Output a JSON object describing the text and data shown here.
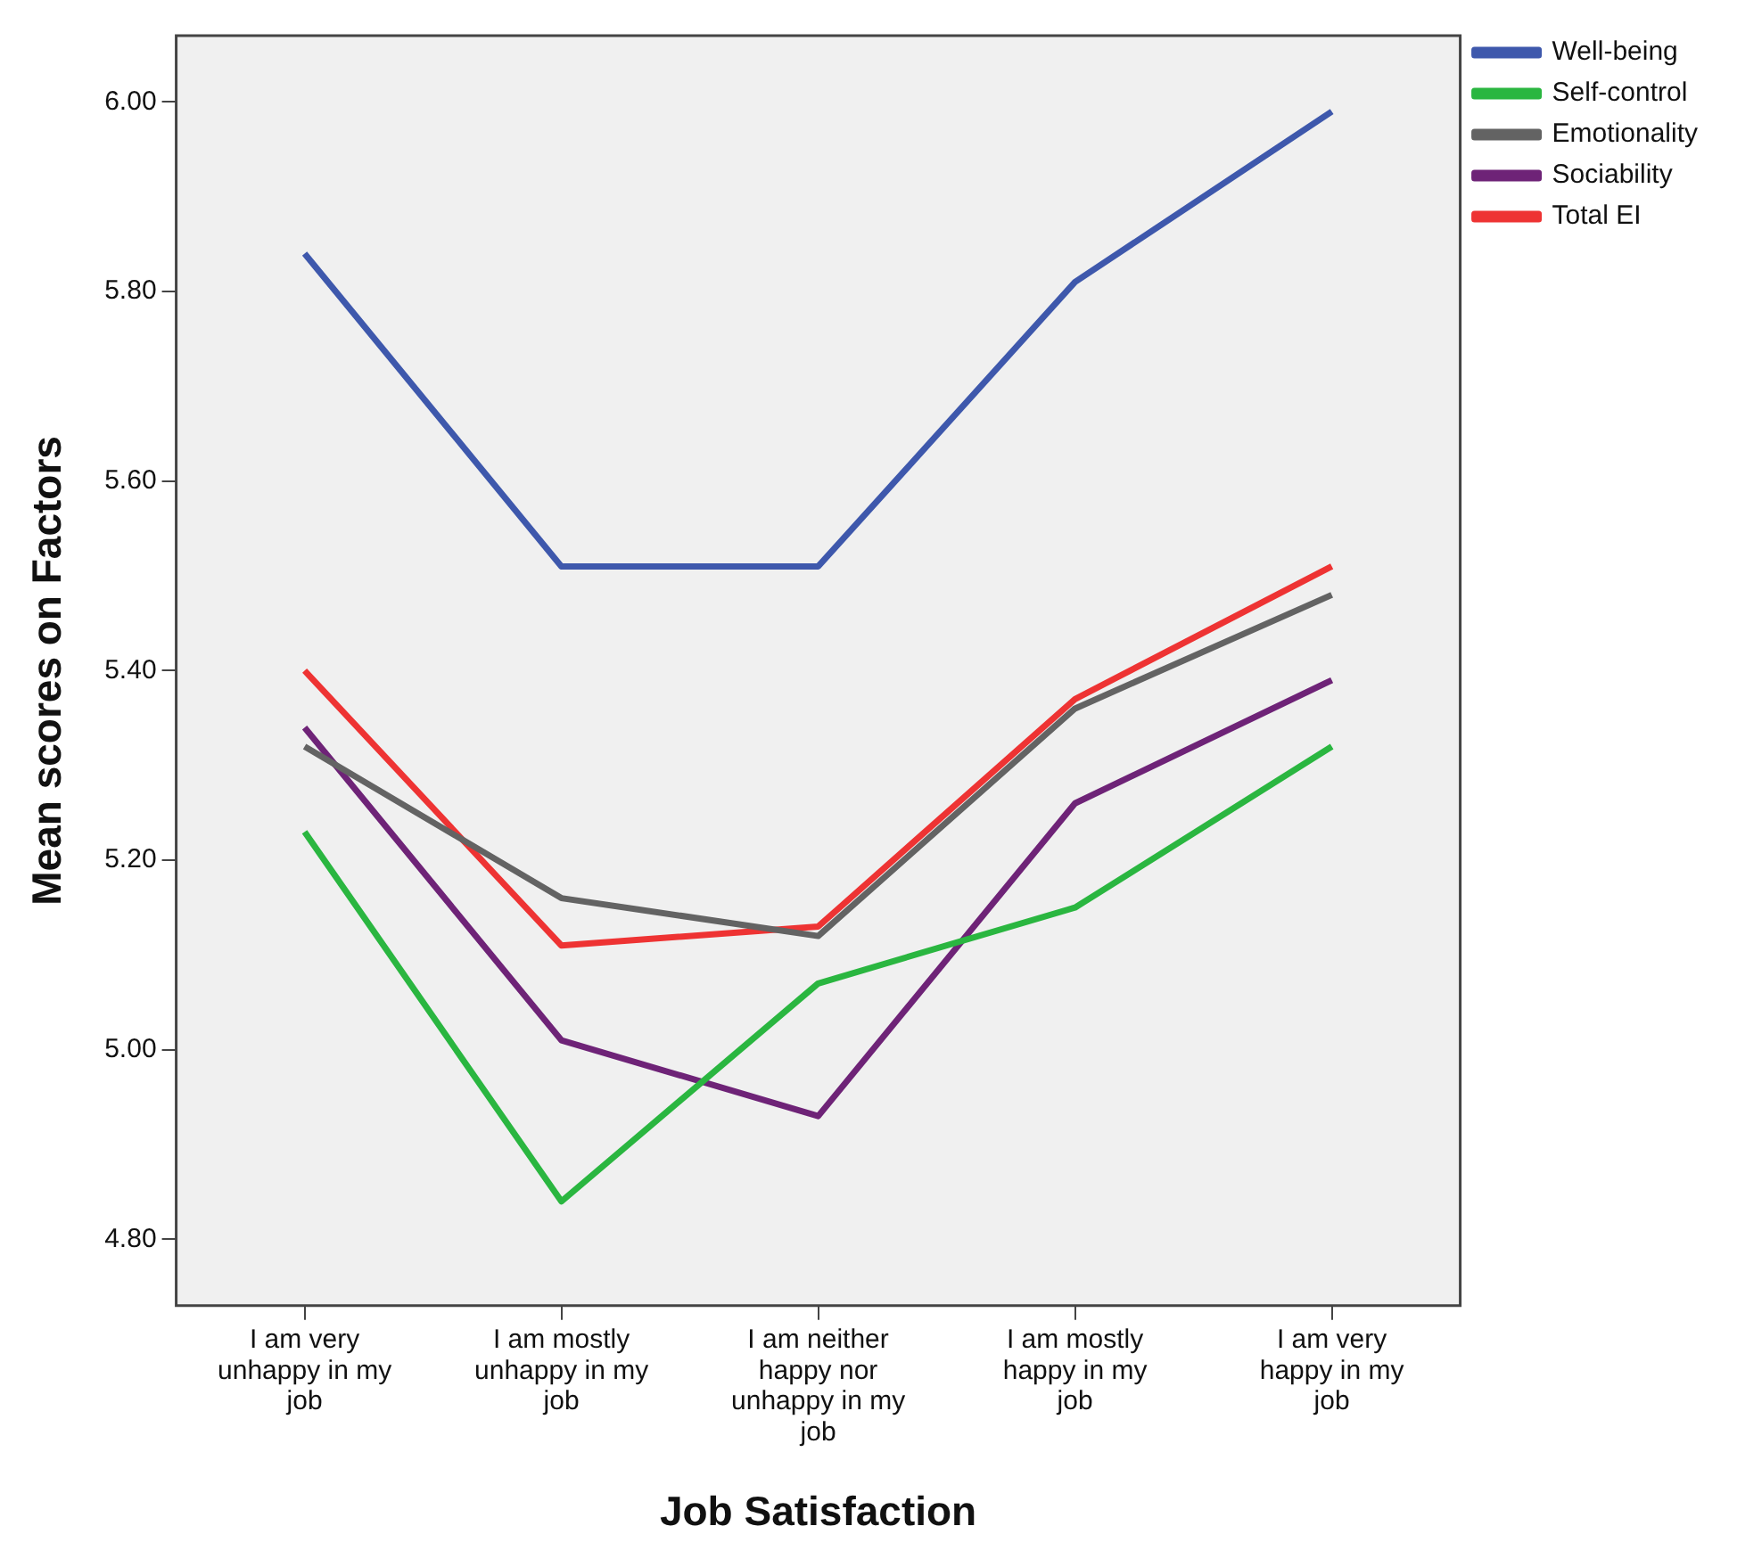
{
  "chart_data": {
    "type": "line",
    "xlabel": "Job Satisfaction",
    "ylabel": "Mean scores on Factors",
    "categories": [
      "I am very unhappy in my job",
      "I am mostly unhappy in my job",
      "I am neither happy nor unhappy in my job",
      "I am mostly happy in my job",
      "I am very happy in my job"
    ],
    "series": [
      {
        "name": "Well-being",
        "color": "#3e58ac",
        "values": [
          5.84,
          5.51,
          5.51,
          5.81,
          5.99
        ]
      },
      {
        "name": "Self-control",
        "color": "#2ab640",
        "values": [
          5.23,
          4.84,
          5.07,
          5.15,
          5.32
        ]
      },
      {
        "name": "Emotionality",
        "color": "#636363",
        "values": [
          5.32,
          5.16,
          5.12,
          5.36,
          5.48
        ]
      },
      {
        "name": "Sociability",
        "color": "#6e2377",
        "values": [
          5.34,
          5.01,
          4.93,
          5.26,
          5.39
        ]
      },
      {
        "name": "Total EI",
        "color": "#ee3333",
        "values": [
          5.4,
          5.11,
          5.13,
          5.37,
          5.51
        ]
      }
    ],
    "ylim": [
      4.73,
      6.07
    ],
    "yticks": [
      {
        "value": 4.8,
        "label": "4.80"
      },
      {
        "value": 5.0,
        "label": "5.00"
      },
      {
        "value": 5.2,
        "label": "5.20"
      },
      {
        "value": 5.4,
        "label": "5.40"
      },
      {
        "value": 5.6,
        "label": "5.60"
      },
      {
        "value": 5.8,
        "label": "5.80"
      },
      {
        "value": 6.0,
        "label": "6.00"
      }
    ],
    "grid": false,
    "legend": "top right",
    "marker": "none",
    "line_style": "solid"
  }
}
